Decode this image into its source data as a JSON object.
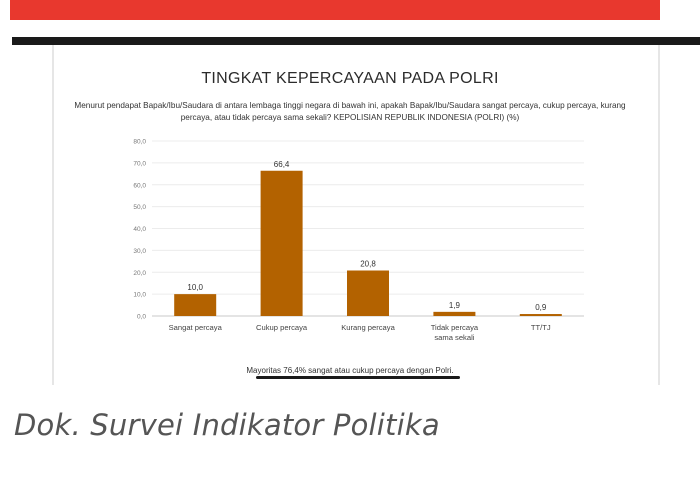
{
  "colors": {
    "bar": "#b36200",
    "red_band": "#e8382e",
    "black_band": "#1a1a1a"
  },
  "chart_data": {
    "type": "bar",
    "title": "TINGKAT KEPERCAYAAN PADA POLRI",
    "subtitle": "Menurut pendapat Bapak/Ibu/Saudara di antara lembaga tinggi negara di bawah ini, apakah Bapak/Ibu/Saudara sangat percaya, cukup percaya, kurang percaya, atau tidak percaya sama sekali? KEPOLISIAN REPUBLIK INDONESIA (POLRI) (%)",
    "categories": [
      [
        "Sangat percaya"
      ],
      [
        "Cukup percaya"
      ],
      [
        "Kurang percaya"
      ],
      [
        "Tidak percaya",
        "sama sekali"
      ],
      [
        "TT/TJ"
      ]
    ],
    "values": [
      10.0,
      66.4,
      20.8,
      1.9,
      0.9
    ],
    "value_labels": [
      "10,0",
      "66,4",
      "20,8",
      "1,9",
      "0,9"
    ],
    "yticks": [
      "0,0",
      "10,0",
      "20,0",
      "30,0",
      "40,0",
      "50,0",
      "60,0",
      "70,0",
      "80,0"
    ],
    "ylim": [
      0,
      80
    ],
    "grid": true
  },
  "footnote": "Mayoritas 76,4% sangat atau cukup percaya dengan Polri.",
  "caption": "Dok. Survei Indikator Politika"
}
